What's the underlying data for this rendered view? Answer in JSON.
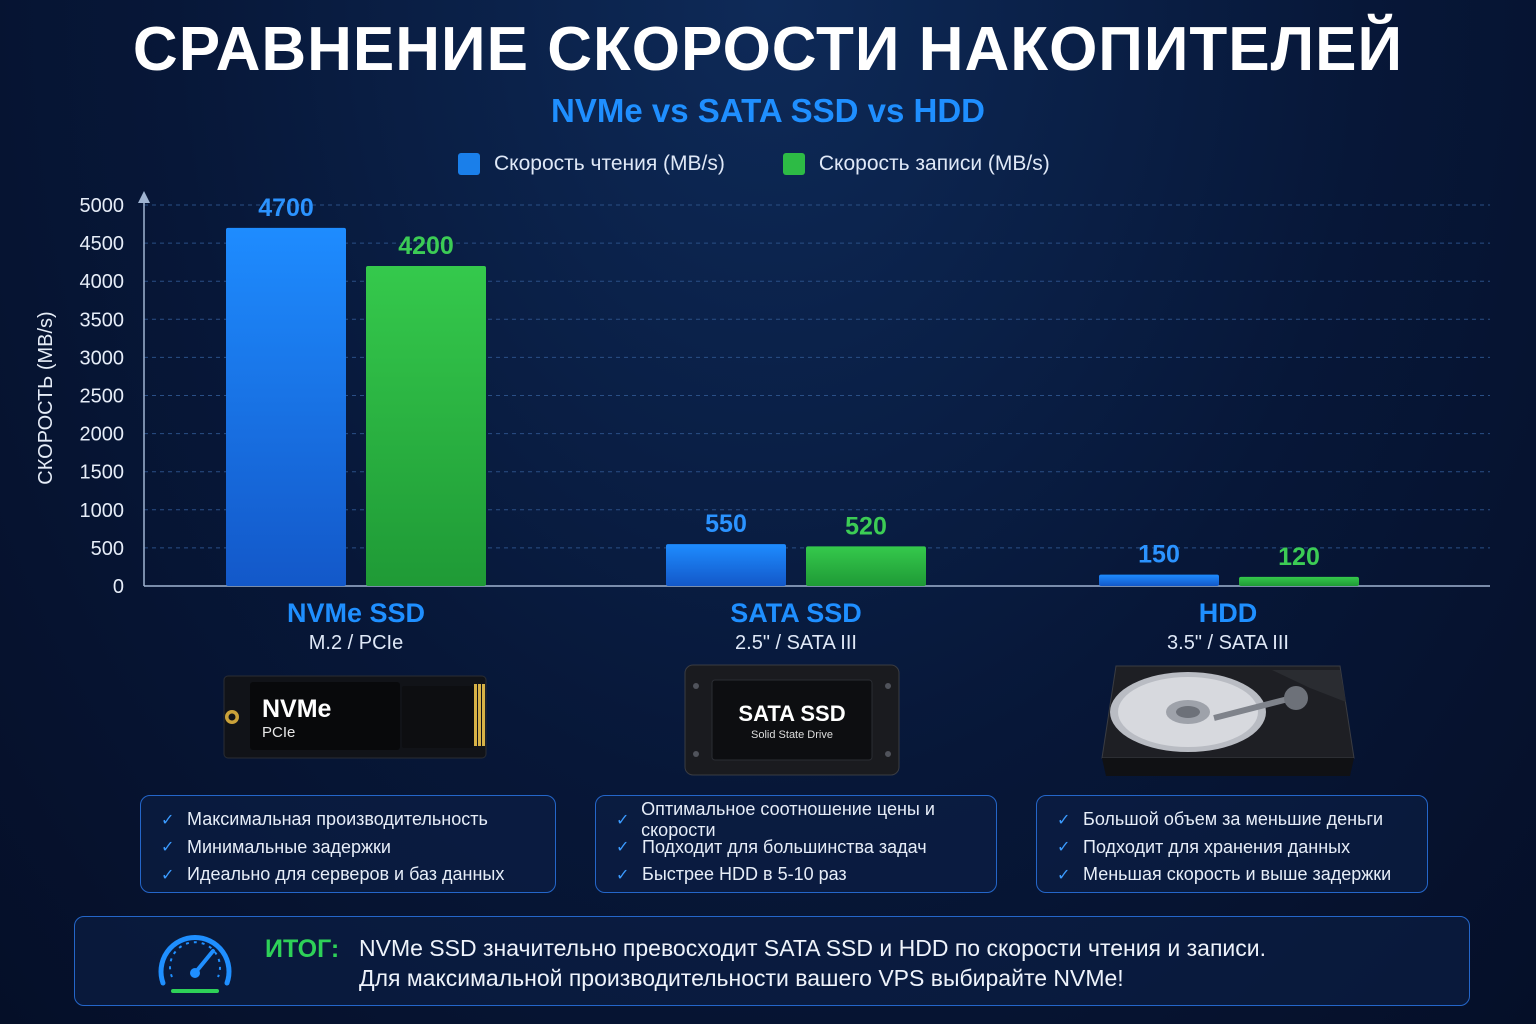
{
  "title": "СРАВНЕНИЕ СКОРОСТИ НАКОПИТЕЛЕЙ",
  "subtitle": "NVMe vs SATA SSD vs HDD",
  "colors": {
    "read": "#1a7fea",
    "write": "#2dbb45",
    "read_label": "#2b93ff",
    "write_label": "#3ccc55",
    "accent": "#1f8fff"
  },
  "chart_data": {
    "type": "bar",
    "categories": [
      "NVMe SSD",
      "SATA SSD",
      "HDD"
    ],
    "series": [
      {
        "name": "Скорость чтения (MB/s)",
        "values": [
          4700,
          550,
          150
        ]
      },
      {
        "name": "Скорость записи (MB/s)",
        "values": [
          4200,
          520,
          120
        ]
      }
    ],
    "ylabel": "СКОРОСТЬ (MB/s)",
    "ylim": [
      0,
      5000
    ],
    "yticks": [
      0,
      500,
      1000,
      1500,
      2000,
      2500,
      3000,
      3500,
      4000,
      4500,
      5000
    ],
    "grid": true,
    "legend": "top-center"
  },
  "categories_info": [
    {
      "name": "NVMe SSD",
      "sub": "M.2 / PCIe",
      "image_label": "NVMe",
      "image_sublabel": "PCIe",
      "features": [
        "Максимальная производительность",
        "Минимальные задержки",
        "Идеально для серверов и баз данных"
      ]
    },
    {
      "name": "SATA SSD",
      "sub": "2.5\" / SATA III",
      "image_label": "SATA SSD",
      "image_sublabel": "Solid State Drive",
      "features": [
        "Оптимальное соотношение цены и скорости",
        "Подходит для большинства задач",
        "Быстрее HDD в 5-10 раз"
      ]
    },
    {
      "name": "HDD",
      "sub": "3.5\" / SATA III",
      "features": [
        "Большой объем за меньшие деньги",
        "Подходит для хранения данных",
        "Меньшая скорость и выше задержки"
      ]
    }
  ],
  "summary": {
    "label": "ИТОГ:",
    "line1": "NVMe SSD значительно превосходит SATA SSD и HDD по скорости чтения и записи.",
    "line2": "Для максимальной производительности вашего VPS выбирайте NVMe!",
    "icon": "speedometer-icon"
  },
  "icons": {
    "check": "✓"
  }
}
